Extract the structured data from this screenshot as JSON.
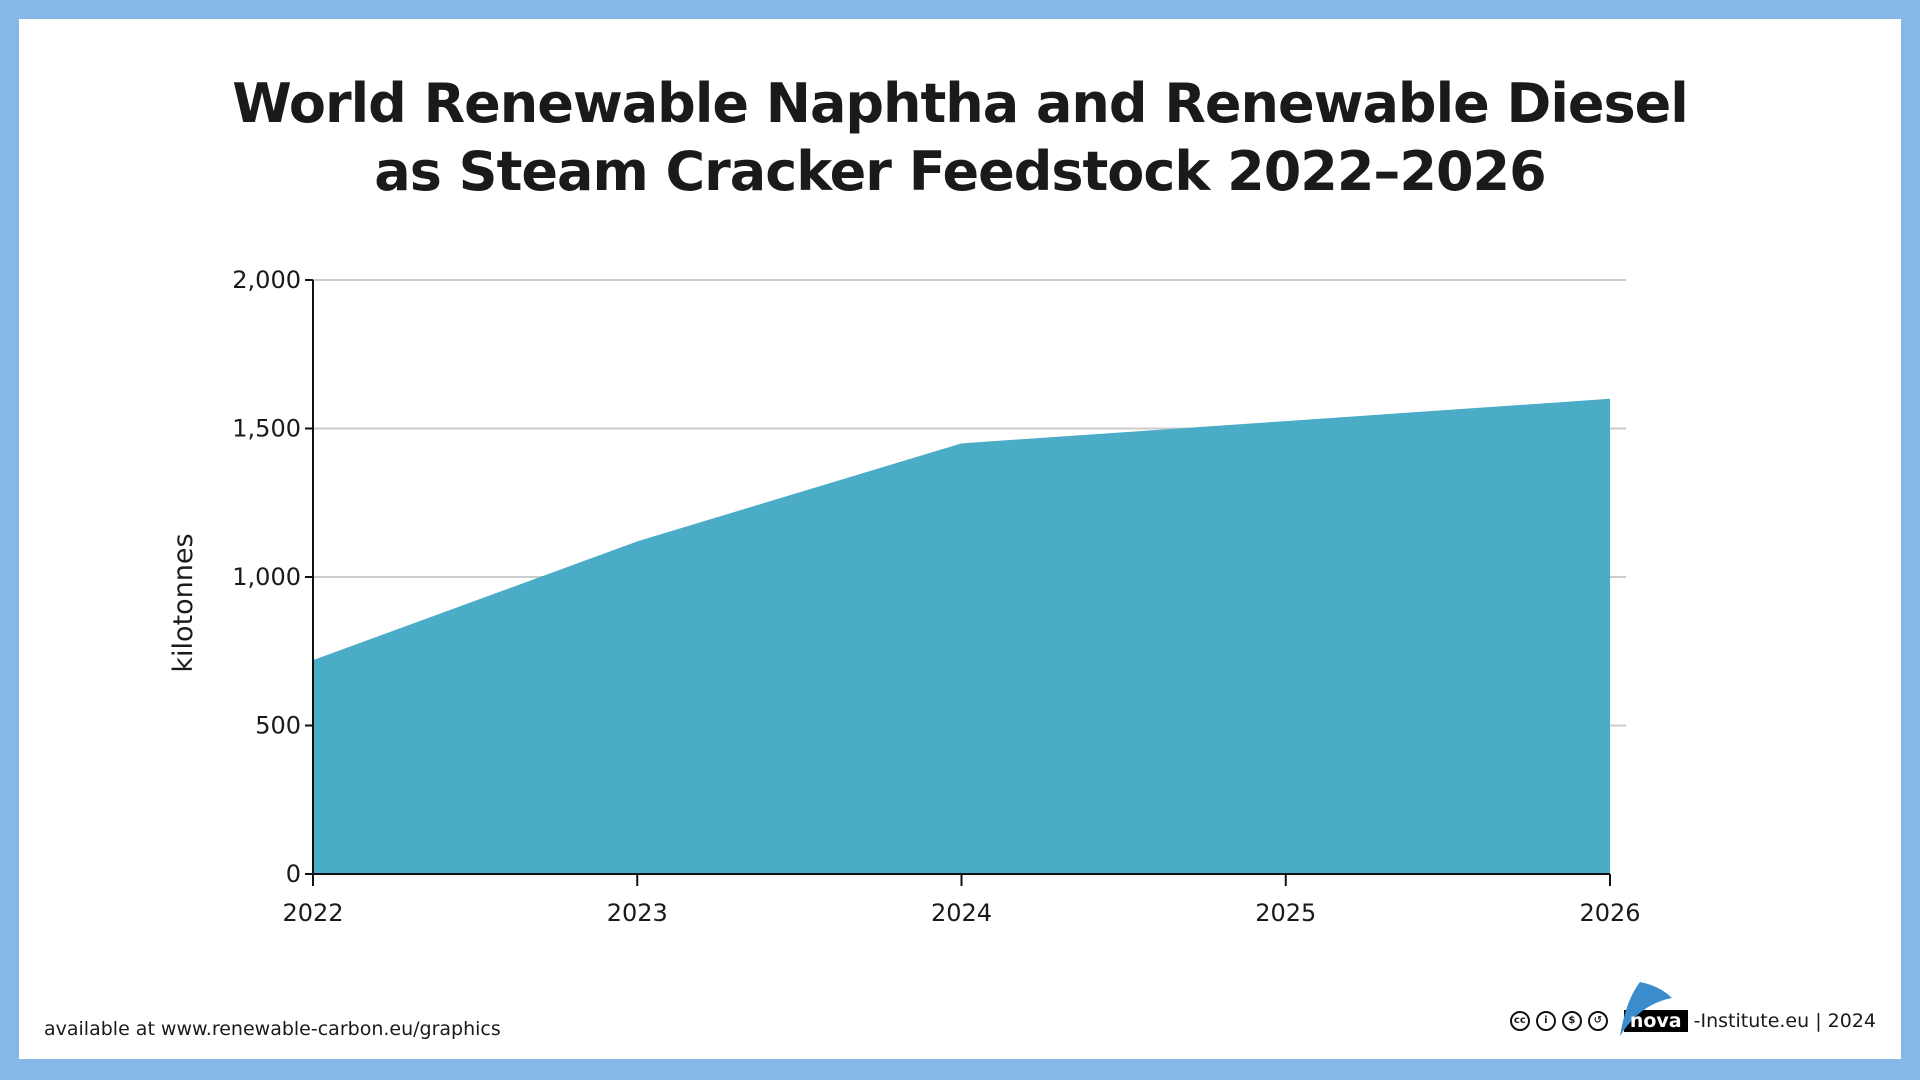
{
  "title_lines": [
    "World Renewable Naphtha and Renewable Diesel",
    "as Steam Cracker Feedstock 2022–2026"
  ],
  "chart_data": {
    "type": "area",
    "title": "World Renewable Naphtha and Renewable Diesel as Steam Cracker Feedstock 2022–2026",
    "xlabel": "",
    "ylabel": "kilotonnes",
    "categories": [
      "2022",
      "2023",
      "2024",
      "2025",
      "2026"
    ],
    "values": [
      720,
      1120,
      1450,
      1525,
      1600
    ],
    "ylim": [
      0,
      2000
    ],
    "yticks": [
      0,
      500,
      1000,
      1500,
      2000
    ],
    "ytick_labels": [
      "0",
      "500",
      "1,000",
      "1,500",
      "2,000"
    ],
    "grid": true,
    "color": "#4aacc7"
  },
  "footer": {
    "source": "available at www.renewable-carbon.eu/graphics",
    "license_icons": [
      "cc-icon",
      "by-icon",
      "nc-icon",
      "sa-icon"
    ],
    "brand": "nova",
    "brand_suffix": "-Institute.eu | 2024"
  },
  "colors": {
    "border": "#85b8e6",
    "area": "#4aacc7",
    "logo_sail": "#3a8ccc"
  }
}
